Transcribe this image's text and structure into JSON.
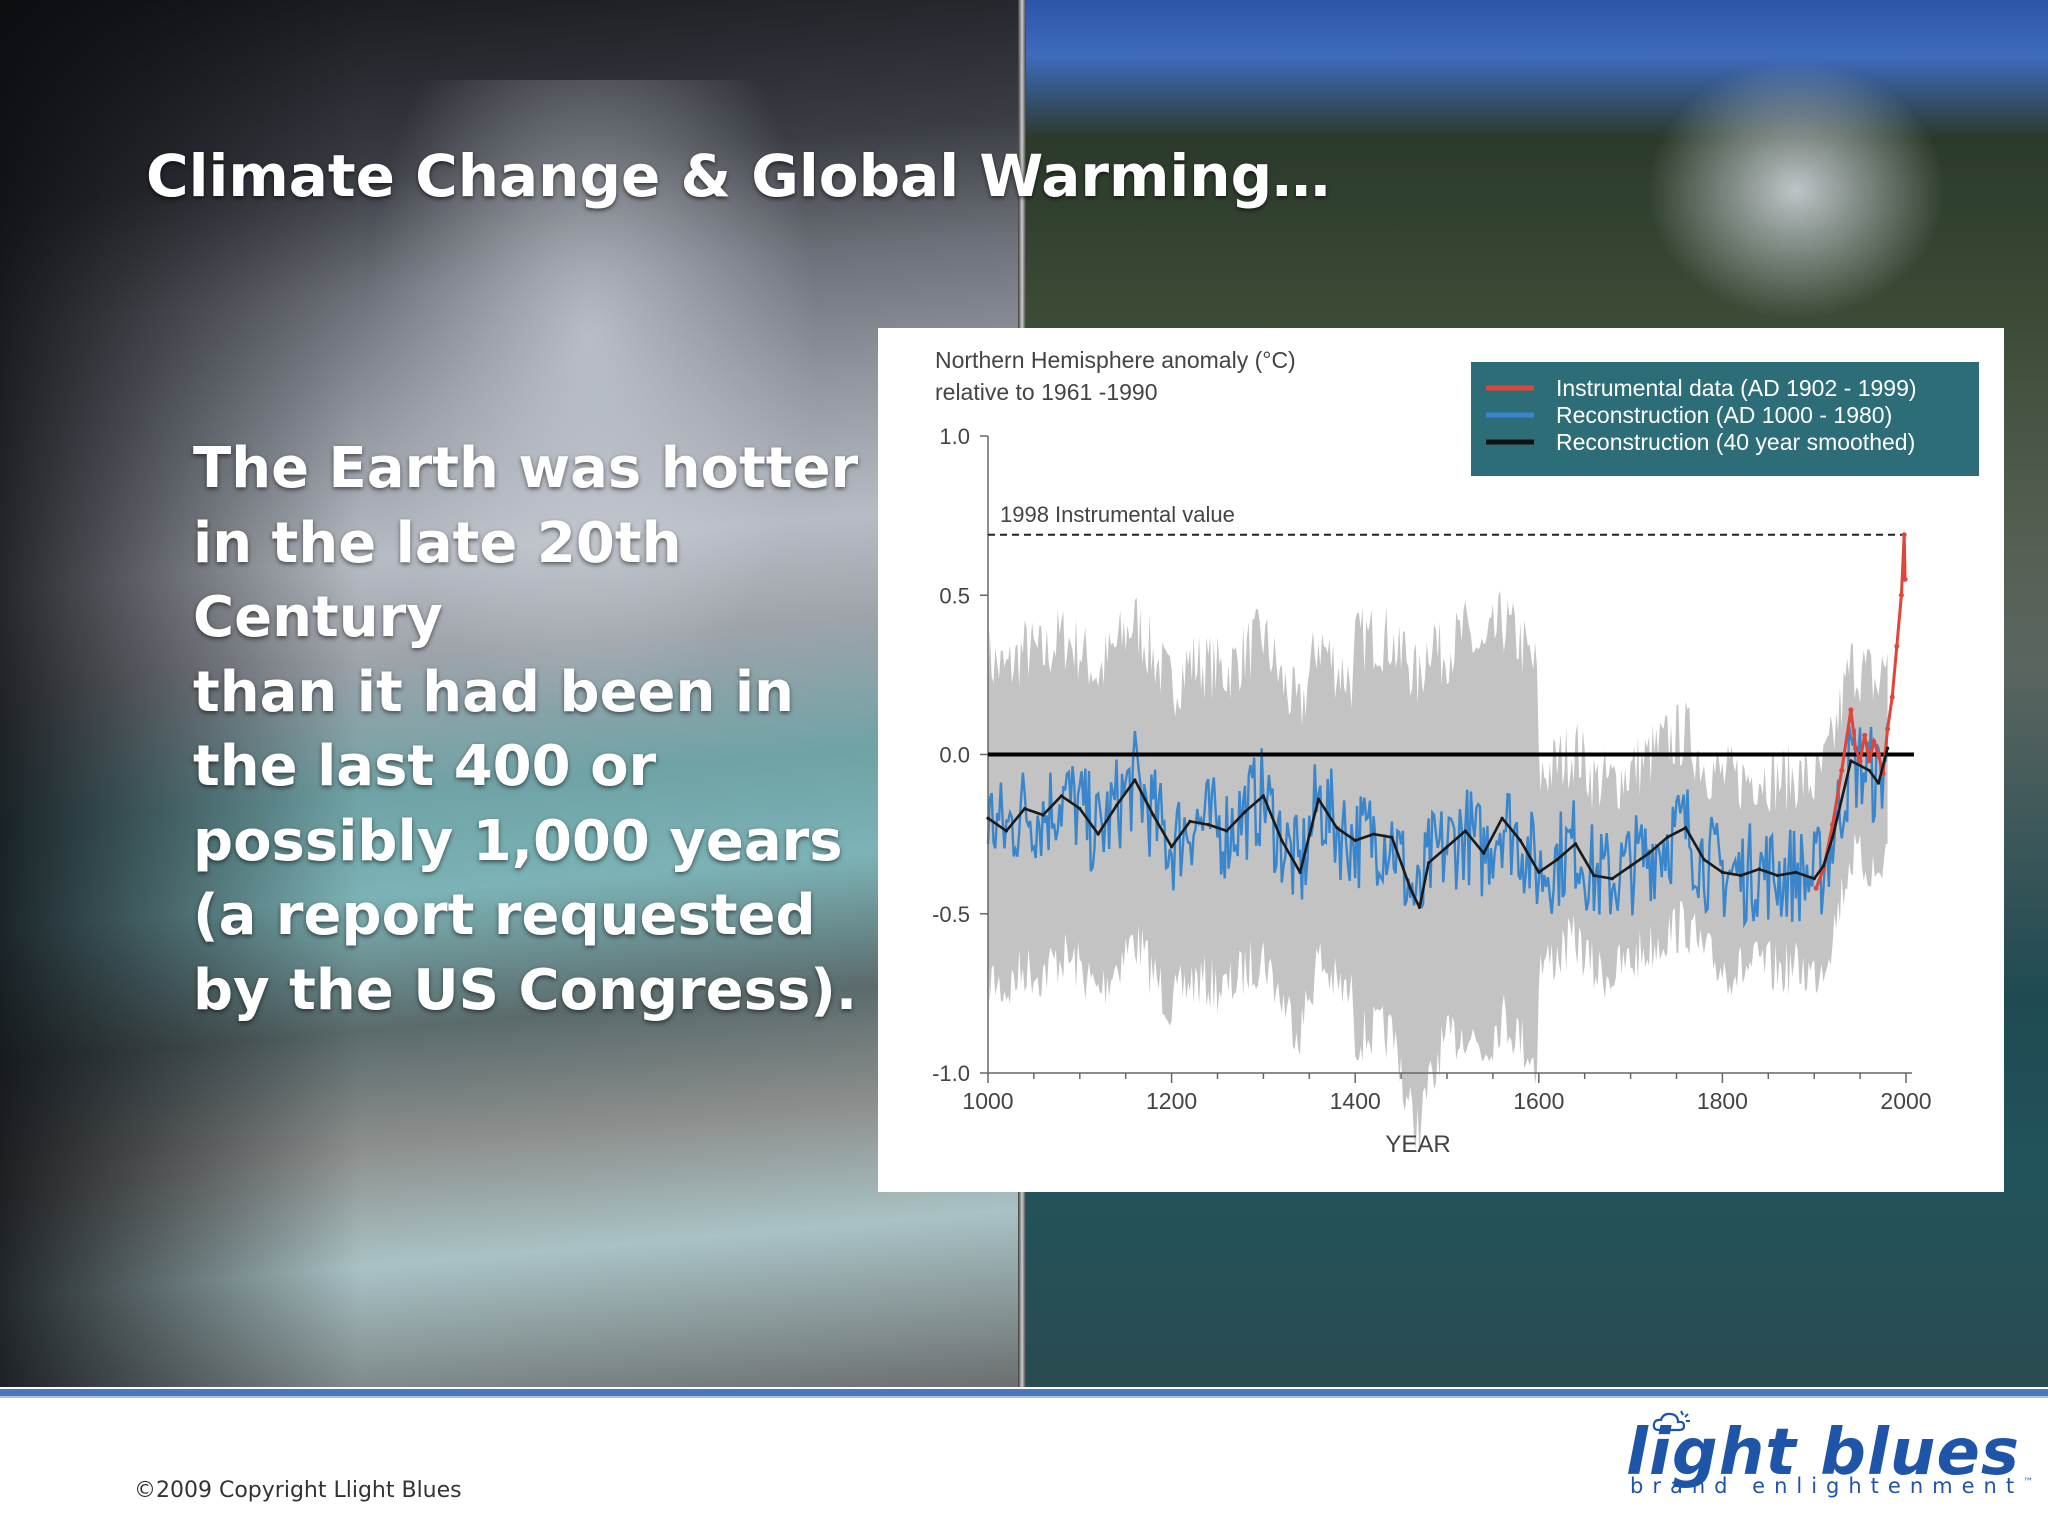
{
  "slide": {
    "title": "Climate Change & Global Warming…",
    "body_lines": [
      "The Earth was hotter",
      "in the late 20th",
      "Century",
      "than it had been in",
      "the last 400 or",
      "possibly 1,000 years",
      "(a report requested",
      "by the US Congress)."
    ],
    "copyright": "©2009 Copyright Llight Blues",
    "logo": {
      "name": "light blues",
      "tagline": "brand enlightenment",
      "trademark": "™"
    }
  },
  "colors": {
    "instrumental": "#e0453a",
    "reconstruction": "#3a86cc",
    "smoothed": "#1a1a1a",
    "uncertainty": "#c3c3c3",
    "legend_bg": "#2c6d78",
    "logo_blue": "#1f55a8",
    "footer_rule": "#4a78b8"
  },
  "chart_data": {
    "type": "line",
    "title": "Northern Hemisphere anomaly (°C)",
    "subtitle": "relative to 1961 -1990",
    "xlabel": "YEAR",
    "ylabel": "",
    "xlim": [
      1000,
      2000
    ],
    "ylim": [
      -1.0,
      1.0
    ],
    "x_ticks": [
      "1000",
      "1200",
      "1400",
      "1600",
      "1800",
      "2000"
    ],
    "y_ticks": [
      "1.0",
      "0.5",
      "0.0",
      "-0.5",
      "-1.0"
    ],
    "legend_position": "top-right",
    "legend": [
      "Instrumental data (AD 1902 - 1999)",
      "Reconstruction (AD 1000 - 1980)",
      "Reconstruction (40 year smoothed)"
    ],
    "reference_line": {
      "label": "1998 Instrumental value",
      "y": 0.69
    },
    "zero_line": 0.0,
    "series": [
      {
        "name": "Reconstruction (40 year smoothed)",
        "x": [
          1000,
          1020,
          1040,
          1060,
          1080,
          1100,
          1120,
          1140,
          1160,
          1180,
          1200,
          1220,
          1240,
          1260,
          1280,
          1300,
          1320,
          1340,
          1360,
          1380,
          1400,
          1420,
          1440,
          1460,
          1470,
          1480,
          1500,
          1520,
          1540,
          1560,
          1580,
          1600,
          1620,
          1640,
          1660,
          1680,
          1700,
          1720,
          1740,
          1760,
          1780,
          1800,
          1820,
          1840,
          1860,
          1880,
          1900,
          1910,
          1920,
          1940,
          1960,
          1970,
          1980
        ],
        "y": [
          -0.2,
          -0.24,
          -0.17,
          -0.19,
          -0.13,
          -0.17,
          -0.25,
          -0.16,
          -0.08,
          -0.19,
          -0.29,
          -0.21,
          -0.22,
          -0.24,
          -0.18,
          -0.13,
          -0.27,
          -0.37,
          -0.14,
          -0.23,
          -0.27,
          -0.25,
          -0.26,
          -0.42,
          -0.48,
          -0.34,
          -0.29,
          -0.24,
          -0.31,
          -0.2,
          -0.27,
          -0.37,
          -0.33,
          -0.28,
          -0.38,
          -0.39,
          -0.35,
          -0.31,
          -0.26,
          -0.23,
          -0.33,
          -0.37,
          -0.38,
          -0.36,
          -0.38,
          -0.37,
          -0.39,
          -0.35,
          -0.26,
          -0.02,
          -0.05,
          -0.09,
          0.02
        ]
      },
      {
        "name": "Instrumental data (AD 1902 - 1999)",
        "x": [
          1902,
          1910,
          1920,
          1930,
          1940,
          1945,
          1950,
          1955,
          1960,
          1965,
          1970,
          1975,
          1980,
          1985,
          1990,
          1995,
          1998,
          1999
        ],
        "y": [
          -0.42,
          -0.36,
          -0.22,
          -0.05,
          0.14,
          0.02,
          -0.02,
          0.06,
          -0.02,
          0.04,
          0.0,
          -0.06,
          0.08,
          0.18,
          0.34,
          0.5,
          0.69,
          0.55
        ]
      }
    ]
  }
}
